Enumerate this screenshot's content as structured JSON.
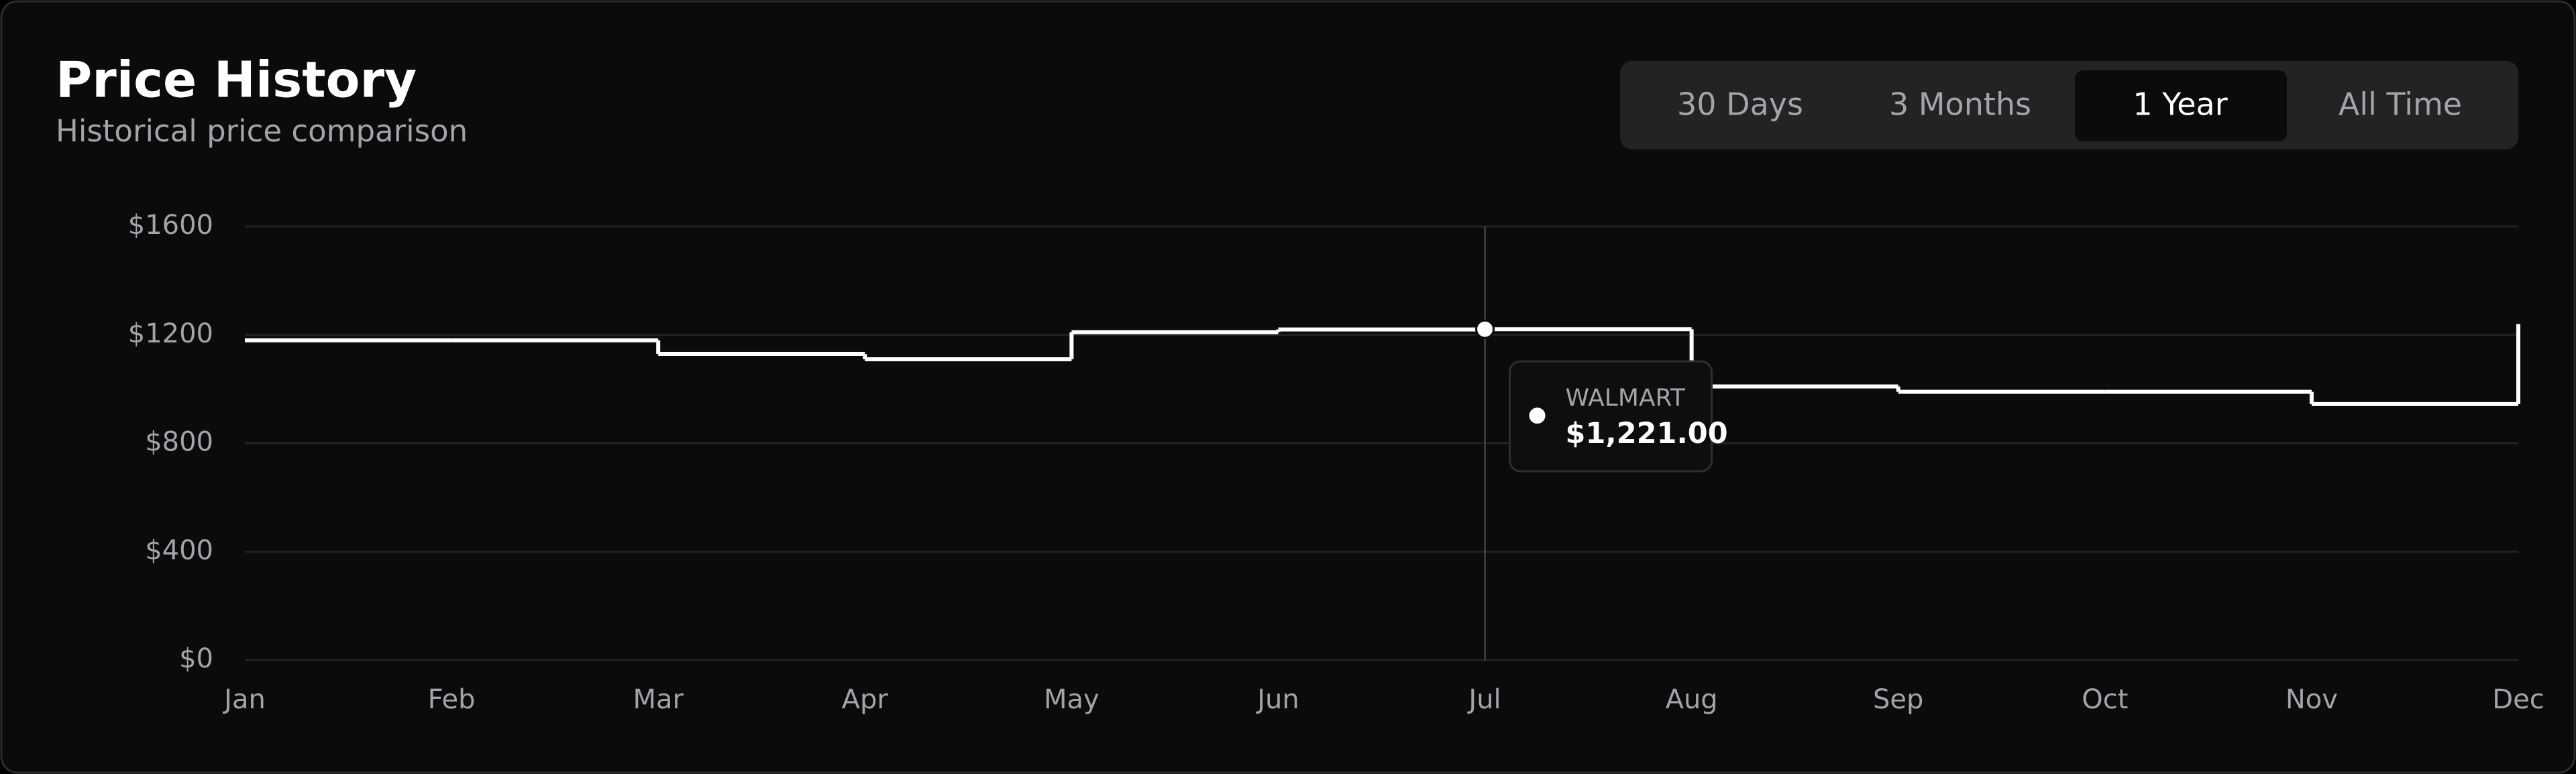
{
  "header": {
    "title": "Price History",
    "subtitle": "Historical price comparison"
  },
  "controls": {
    "range_options": [
      "30 Days",
      "3 Months",
      "1 Year",
      "All Time"
    ],
    "selected": 2
  },
  "chart_data": {
    "type": "step",
    "categories": [
      "Jan",
      "Feb",
      "Mar",
      "Apr",
      "May",
      "Jun",
      "Jul",
      "Aug",
      "Sep",
      "Oct",
      "Nov",
      "Dec"
    ],
    "series": [
      {
        "name": "WALMART",
        "color": "#ffffff",
        "values": [
          1180,
          1180,
          1130,
          1110,
          1210,
          1220,
          1221,
          1010,
          990,
          990,
          945,
          1240
        ],
        "value_labels": [
          null,
          null,
          null,
          null,
          null,
          null,
          "$1,221.00",
          null,
          null,
          null,
          null,
          null
        ]
      }
    ],
    "ylim": [
      0,
      1600
    ],
    "yticks": [
      {
        "value": 0,
        "label": "$0"
      },
      {
        "value": 400,
        "label": "$400"
      },
      {
        "value": 800,
        "label": "$800"
      },
      {
        "value": 1200,
        "label": "$1200"
      },
      {
        "value": 1600,
        "label": "$1600"
      }
    ],
    "grid": true
  }
}
